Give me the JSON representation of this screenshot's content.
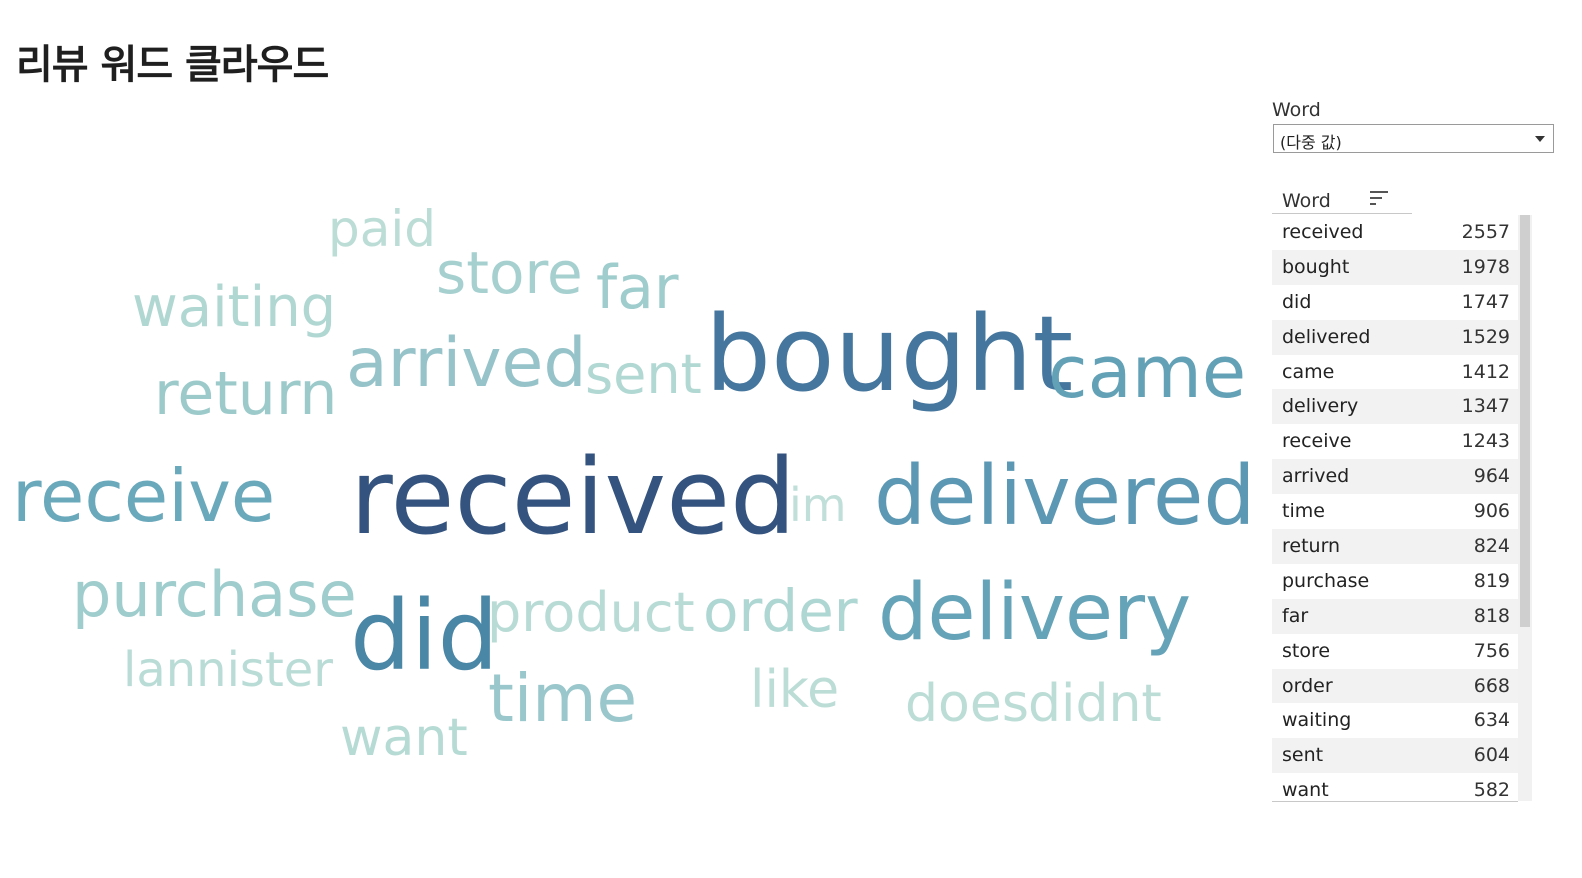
{
  "title": "리뷰 워드 클라우드",
  "filter": {
    "label": "Word",
    "selected": "(다중 값)"
  },
  "table": {
    "header": "Word",
    "rows": [
      {
        "word": "received",
        "count": "2557"
      },
      {
        "word": "bought",
        "count": "1978"
      },
      {
        "word": "did",
        "count": "1747"
      },
      {
        "word": "delivered",
        "count": "1529"
      },
      {
        "word": "came",
        "count": "1412"
      },
      {
        "word": "delivery",
        "count": "1347"
      },
      {
        "word": "receive",
        "count": "1243"
      },
      {
        "word": "arrived",
        "count": "964"
      },
      {
        "word": "time",
        "count": "906"
      },
      {
        "word": "return",
        "count": "824"
      },
      {
        "word": "purchase",
        "count": "819"
      },
      {
        "word": "far",
        "count": "818"
      },
      {
        "word": "store",
        "count": "756"
      },
      {
        "word": "order",
        "count": "668"
      },
      {
        "word": "waiting",
        "count": "634"
      },
      {
        "word": "sent",
        "count": "604"
      },
      {
        "word": "want",
        "count": "582"
      }
    ]
  },
  "cloud": {
    "words": [
      {
        "text": "received",
        "color": "#34537f"
      },
      {
        "text": "bought",
        "color": "#45769d"
      },
      {
        "text": "did",
        "color": "#4a86a6"
      },
      {
        "text": "delivered",
        "color": "#5c98b3"
      },
      {
        "text": "came",
        "color": "#63a1b7"
      },
      {
        "text": "delivery",
        "color": "#65a3b8"
      },
      {
        "text": "receive",
        "color": "#6aa8bb"
      },
      {
        "text": "arrived",
        "color": "#95c3c9"
      },
      {
        "text": "time",
        "color": "#99c7cb"
      },
      {
        "text": "return",
        "color": "#9ccacb"
      },
      {
        "text": "purchase",
        "color": "#9fcccd"
      },
      {
        "text": "far",
        "color": "#9fcccd"
      },
      {
        "text": "store",
        "color": "#a5d0cf"
      },
      {
        "text": "order",
        "color": "#aed6d2"
      },
      {
        "text": "waiting",
        "color": "#b0d7d2"
      },
      {
        "text": "sent",
        "color": "#b2d8d3"
      },
      {
        "text": "want",
        "color": "#b6dad4"
      },
      {
        "text": "product",
        "color": "#b8dbd5"
      },
      {
        "text": "lannister",
        "color": "#badcd6"
      },
      {
        "text": "paid",
        "color": "#bcddd6"
      },
      {
        "text": "like",
        "color": "#bcddd6"
      },
      {
        "text": "does",
        "color": "#bcddd6"
      },
      {
        "text": "didnt",
        "color": "#bcddd6"
      },
      {
        "text": "im",
        "color": "#c0dfd8"
      }
    ]
  }
}
